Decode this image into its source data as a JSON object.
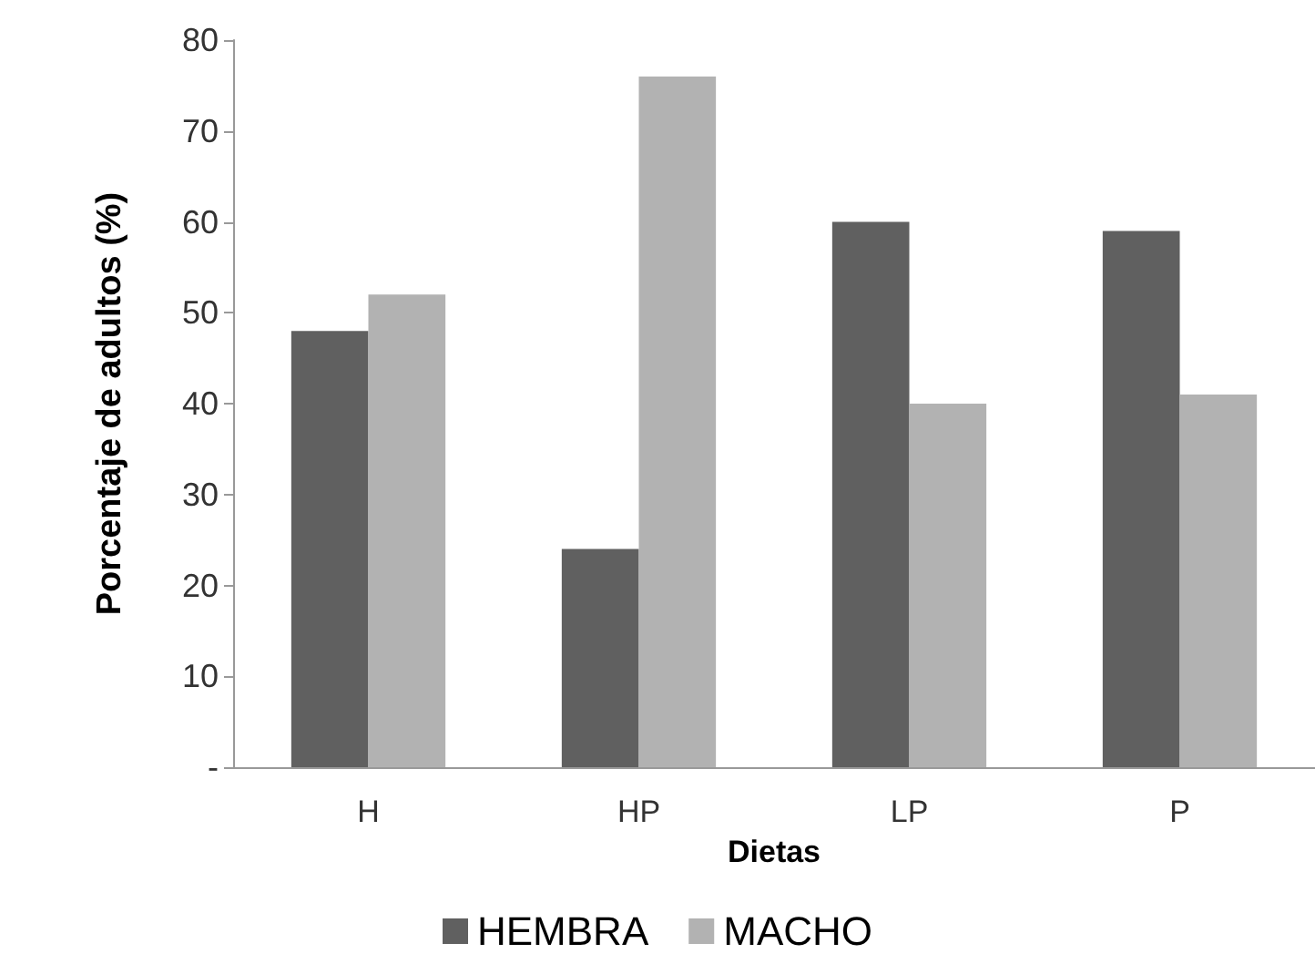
{
  "chart_data": {
    "type": "bar",
    "xlabel": "Dietas",
    "ylabel": "Porcentaje de adultos (%)",
    "categories": [
      "H",
      "HP",
      "LP",
      "P"
    ],
    "series": [
      {
        "name": "HEMBRA",
        "color": "#606060",
        "values": [
          48,
          24,
          60,
          59
        ]
      },
      {
        "name": "MACHO",
        "color": "#b2b2b2",
        "values": [
          52,
          76,
          40,
          41
        ]
      }
    ],
    "ylim": [
      0,
      80
    ],
    "yticks": [
      {
        "value": 0,
        "label": "-"
      },
      10,
      20,
      30,
      40,
      50,
      60,
      70,
      80
    ],
    "grid": false,
    "legend": "bottom"
  }
}
